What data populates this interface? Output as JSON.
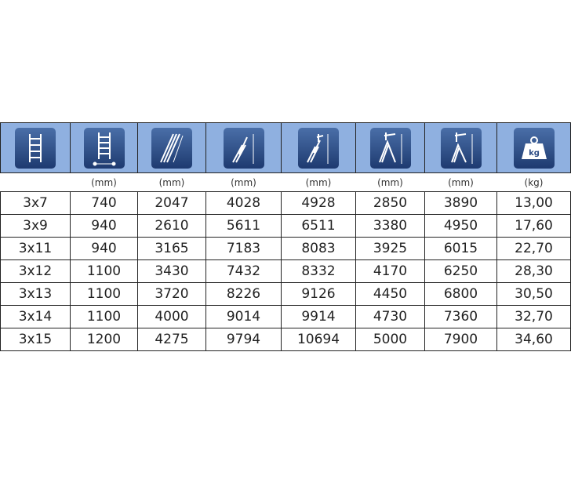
{
  "columns": [
    {
      "icon": "single-ladder-icon",
      "unit": ""
    },
    {
      "icon": "ladder-width-icon",
      "unit": "(mm)"
    },
    {
      "icon": "folded-ladder-length-icon",
      "unit": "(mm)"
    },
    {
      "icon": "extended-ladder-height-icon",
      "unit": "(mm)"
    },
    {
      "icon": "working-height-extended-icon",
      "unit": "(mm)"
    },
    {
      "icon": "a-frame-height-icon",
      "unit": "(mm)"
    },
    {
      "icon": "a-frame-extended-height-icon",
      "unit": "(mm)"
    },
    {
      "icon": "weight-icon",
      "unit": "(kg)",
      "icon_text": "kg"
    }
  ],
  "rows": [
    [
      "3x7",
      "740",
      "2047",
      "4028",
      "4928",
      "2850",
      "3890",
      "13,00"
    ],
    [
      "3x9",
      "940",
      "2610",
      "5611",
      "6511",
      "3380",
      "4950",
      "17,60"
    ],
    [
      "3x11",
      "940",
      "3165",
      "7183",
      "8083",
      "3925",
      "6015",
      "22,70"
    ],
    [
      "3x12",
      "1100",
      "3430",
      "7432",
      "8332",
      "4170",
      "6250",
      "28,30"
    ],
    [
      "3x13",
      "1100",
      "3720",
      "8226",
      "9126",
      "4450",
      "6800",
      "30,50"
    ],
    [
      "3x14",
      "1100",
      "4000",
      "9014",
      "9914",
      "4730",
      "7360",
      "32,70"
    ],
    [
      "3x15",
      "1200",
      "4275",
      "9794",
      "10694",
      "5000",
      "7900",
      "34,60"
    ]
  ],
  "colors": {
    "header_bg": "#8fb0e0",
    "icon_bg": "#2a4a84"
  }
}
